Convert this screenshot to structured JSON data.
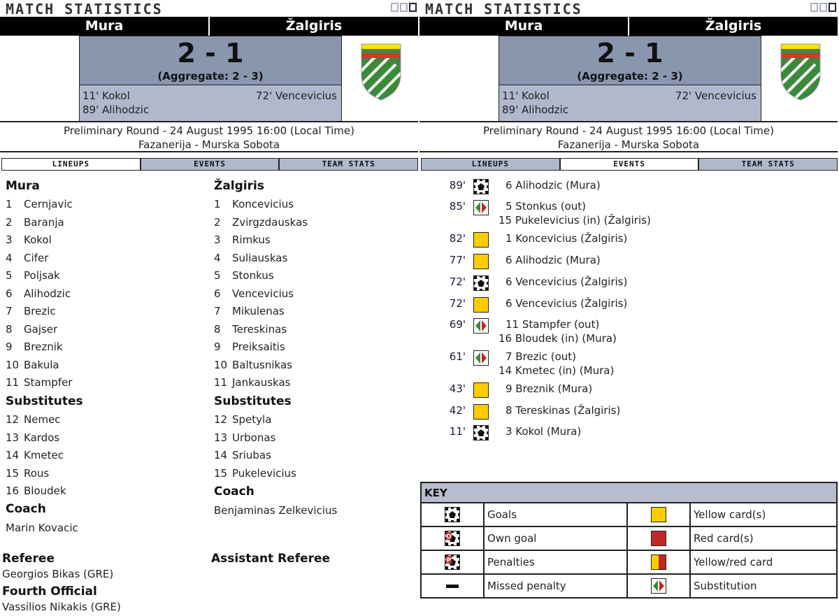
{
  "page_title": "MATCH STATISTICS",
  "match": {
    "home": "Mura",
    "away": "Žalgiris",
    "score": "2 - 1",
    "aggregate": "(Aggregate: 2 - 3)",
    "home_scorers": [
      "11' Kokol",
      "89' Alihodzic"
    ],
    "away_scorers": [
      "72' Vencevicius"
    ],
    "round_info": "Preliminary Round - 24 August 1995 16:00 (Local Time)",
    "venue": "Fazanerija - Murska Sobota"
  },
  "tabs": [
    "LINEUPS",
    "EVENTS",
    "TEAM STATS"
  ],
  "left_panel_active_tab": "LINEUPS",
  "right_panel_active_tab": "EVENTS",
  "lineups": {
    "home": {
      "team": "Mura",
      "players": [
        "1|Cernjavic",
        "2|Baranja",
        "3|Kokol",
        "4|Cifer",
        "5|Poljsak",
        "6|Alihodzic",
        "7|Brezic",
        "8|Gajser",
        "9|Breznik",
        "10|Bakula",
        "11|Stampfer"
      ],
      "substitutes_label": "Substitutes",
      "subs": [
        "12|Nemec",
        "13|Kardos",
        "14|Kmetec",
        "15|Rous",
        "16|Bloudek"
      ],
      "coach_label": "Coach",
      "coach": "Marin Kovacic"
    },
    "away": {
      "team": "Žalgiris",
      "players": [
        "1|Koncevicius",
        "2|Zvirgzdauskas",
        "3|Rimkus",
        "4|Suliauskas",
        "5|Stonkus",
        "6|Vencevicius",
        "7|Mikulenas",
        "8|Tereskinas",
        "9|Preiksaitis",
        "10|Baltusnikas",
        "11|Jankauskas"
      ],
      "substitutes_label": "Substitutes",
      "subs": [
        "12|Spetyla",
        "13|Urbonas",
        "14|Sriubas",
        "15|Pukelevicius"
      ],
      "coach_label": "Coach",
      "coach": "Benjaminas Zelkevicius"
    },
    "referee_label": "Referee",
    "referee": "Georgios Bikas (GRE)",
    "assistant_referee_label": "Assistant Referee",
    "fourth_official_label": "Fourth Official",
    "fourth_official": "Vassilios Nikakis (GRE)"
  },
  "events": [
    {
      "min": "89'",
      "type": "goal",
      "lines": [
        "6 Alihodzic (Mura)"
      ]
    },
    {
      "min": "85'",
      "type": "substitution",
      "lines": [
        "5 Stonkus (out)",
        "15 Pukelevicius (in) (Žalgiris)"
      ]
    },
    {
      "min": "82'",
      "type": "yellow",
      "lines": [
        "1 Koncevicius (Žalgiris)"
      ]
    },
    {
      "min": "77'",
      "type": "yellow",
      "lines": [
        "6 Alihodzic (Mura)"
      ]
    },
    {
      "min": "72'",
      "type": "goal",
      "lines": [
        "6 Vencevicius (Žalgiris)"
      ]
    },
    {
      "min": "72'",
      "type": "yellow",
      "lines": [
        "6 Vencevicius (Žalgiris)"
      ]
    },
    {
      "min": "69'",
      "type": "substitution",
      "lines": [
        "11 Stampfer (out)",
        "16 Bloudek (in) (Mura)"
      ]
    },
    {
      "min": "61'",
      "type": "substitution",
      "lines": [
        "7 Brezic (out)",
        "14 Kmetec (in) (Mura)"
      ]
    },
    {
      "min": "43'",
      "type": "yellow",
      "lines": [
        "9 Breznik (Mura)"
      ]
    },
    {
      "min": "42'",
      "type": "yellow",
      "lines": [
        "8 Tereskinas (Žalgiris)"
      ]
    },
    {
      "min": "11'",
      "type": "goal",
      "lines": [
        "3 Kokol (Mura)"
      ]
    }
  ],
  "key": {
    "title": "KEY",
    "items": [
      [
        "goal",
        "Goals",
        "yellow",
        "Yellow card(s)"
      ],
      [
        "own-goal",
        "Own goal",
        "red",
        "Red card(s)"
      ],
      [
        "penalty",
        "Penalties",
        "yellow-red",
        "Yellow/red card"
      ],
      [
        "missed-penalty",
        "Missed penalty",
        "substitution",
        "Substitution"
      ]
    ]
  },
  "colors": {
    "yellow": "#ffcc00",
    "red": "#c0282a",
    "score_bg": "#8a96ae",
    "tab_bg": "#b0b8cc",
    "green": "#3a8a3a"
  }
}
